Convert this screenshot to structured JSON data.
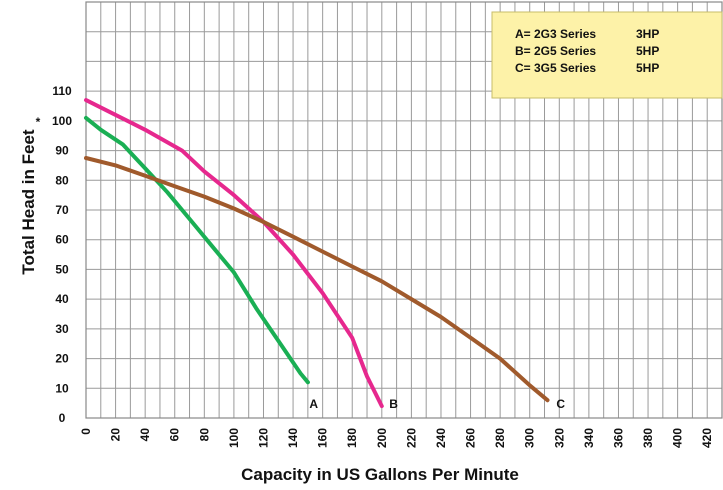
{
  "chart_data": {
    "type": "line",
    "xlabel": "Capacity in US Gallons Per Minute",
    "ylabel": "Total Head in Feet",
    "ylabel_mark": "*",
    "xlim": [
      0,
      430
    ],
    "ylim": [
      0,
      140
    ],
    "x_ticks": [
      0,
      20,
      40,
      60,
      80,
      100,
      120,
      140,
      160,
      180,
      200,
      220,
      240,
      260,
      280,
      300,
      320,
      340,
      360,
      380,
      400,
      420
    ],
    "y_ticks": [
      0,
      10,
      20,
      30,
      40,
      50,
      60,
      70,
      80,
      90,
      100,
      110
    ],
    "grid": true,
    "legend_position": "top-right",
    "legend": [
      {
        "label": "A= 2G3  Series",
        "hp": "3HP"
      },
      {
        "label": "B= 2G5  Series",
        "hp": "5HP"
      },
      {
        "label": "C= 3G5  Series",
        "hp": "5HP"
      }
    ],
    "series": [
      {
        "name": "A",
        "color": "#1aaf54",
        "x": [
          0,
          10,
          25,
          40,
          55,
          70,
          85,
          100,
          115,
          130,
          145,
          150
        ],
        "y": [
          101,
          97,
          92,
          84,
          76,
          67,
          58,
          49,
          37,
          26,
          15,
          12
        ]
      },
      {
        "name": "B",
        "color": "#e6288e",
        "x": [
          0,
          20,
          40,
          65,
          80,
          100,
          120,
          140,
          160,
          180,
          190,
          200
        ],
        "y": [
          107,
          102,
          97,
          90,
          83,
          75,
          66,
          55,
          42,
          27,
          14,
          4
        ]
      },
      {
        "name": "C",
        "color": "#a05a2c",
        "x": [
          0,
          20,
          40,
          60,
          80,
          100,
          120,
          140,
          160,
          180,
          200,
          220,
          240,
          260,
          280,
          300,
          312
        ],
        "y": [
          87.5,
          85,
          81.5,
          78,
          74.5,
          70.5,
          66,
          61,
          56,
          51,
          46,
          40,
          34,
          27,
          20,
          11,
          6
        ]
      }
    ],
    "curve_labels": [
      {
        "text": "A",
        "x": 151,
        "y": 5
      },
      {
        "text": "B",
        "x": 205,
        "y": 5
      },
      {
        "text": "C",
        "x": 318,
        "y": 5
      }
    ]
  }
}
